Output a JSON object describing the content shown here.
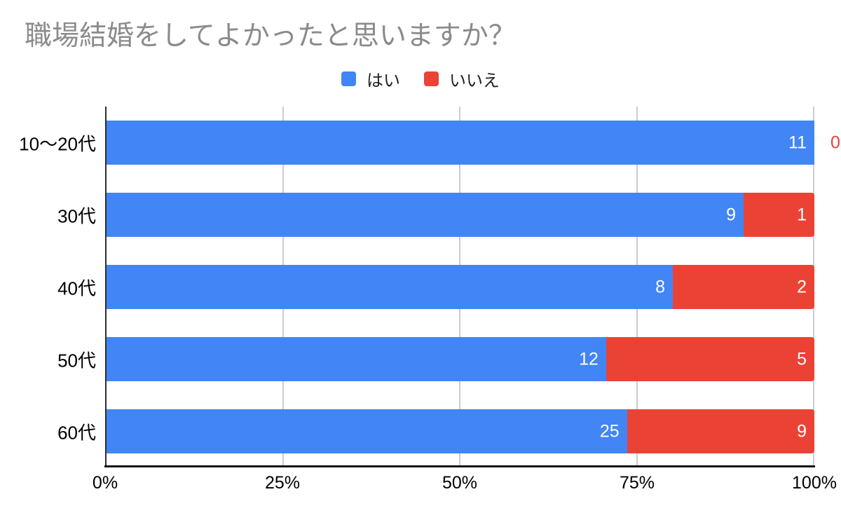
{
  "title": "職場結婚をしてよかったと思いますか？",
  "colors": {
    "yes": "#4285F4",
    "no": "#EA4335",
    "title_text": "#8b8b8b",
    "axis_line": "#2e2e2e",
    "gridline": "#cccccc",
    "bar_label": "#ffffff",
    "axis_label": "#000000"
  },
  "legend": {
    "items": [
      {
        "label": "はい",
        "color": "#4285F4"
      },
      {
        "label": "いいえ",
        "color": "#EA4335"
      }
    ]
  },
  "chart_data": {
    "type": "bar",
    "orientation": "horizontal",
    "stacked": "percent",
    "title": "職場結婚をしてよかったと思いますか？",
    "categories": [
      "10〜20代",
      "30代",
      "40代",
      "50代",
      "60代"
    ],
    "series": [
      {
        "name": "はい",
        "color": "#4285F4",
        "values": [
          11,
          9,
          8,
          12,
          25
        ]
      },
      {
        "name": "いいえ",
        "color": "#EA4335",
        "values": [
          0,
          1,
          2,
          5,
          9
        ]
      }
    ],
    "xlabel": "",
    "ylabel": "",
    "xlim_percent": [
      0,
      100
    ],
    "x_tick_labels": [
      "0%",
      "25%",
      "50%",
      "75%",
      "100%"
    ],
    "grid": true,
    "legend_position": "top"
  }
}
